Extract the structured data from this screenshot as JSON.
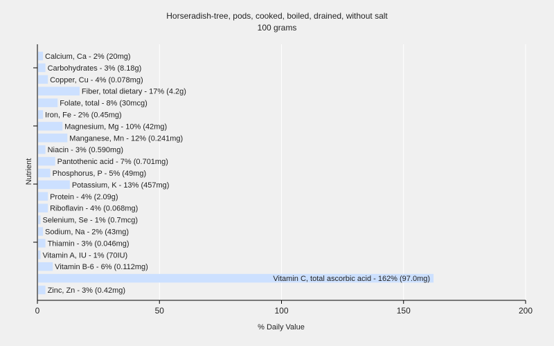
{
  "chart_data": {
    "type": "bar",
    "orientation": "horizontal",
    "title": "Horseradish-tree, pods, cooked, boiled, drained, without salt",
    "subtitle": "100 grams",
    "xlabel": "% Daily Value",
    "ylabel": "Nutrient",
    "xlim": [
      0,
      200
    ],
    "xticks": [
      0,
      50,
      100,
      150,
      200
    ],
    "grid": "vertical",
    "colors": {
      "bar": "#cce0ff",
      "grid": "#ffffff",
      "background": "#f0f0f0",
      "axis": "#000000"
    },
    "categories": [
      "Calcium, Ca - 2% (20mg)",
      "Carbohydrates - 3% (8.18g)",
      "Copper, Cu - 4% (0.078mg)",
      "Fiber, total dietary - 17% (4.2g)",
      "Folate, total - 8% (30mcg)",
      "Iron, Fe - 2% (0.45mg)",
      "Magnesium, Mg - 10% (42mg)",
      "Manganese, Mn - 12% (0.241mg)",
      "Niacin - 3% (0.590mg)",
      "Pantothenic acid - 7% (0.701mg)",
      "Phosphorus, P - 5% (49mg)",
      "Potassium, K - 13% (457mg)",
      "Protein - 4% (2.09g)",
      "Riboflavin - 4% (0.068mg)",
      "Selenium, Se - 1% (0.7mcg)",
      "Sodium, Na - 2% (43mg)",
      "Thiamin - 3% (0.046mg)",
      "Vitamin A, IU - 1% (70IU)",
      "Vitamin B-6 - 6% (0.112mg)",
      "Vitamin C, total ascorbic acid - 162% (97.0mg)",
      "Zinc, Zn - 3% (0.42mg)"
    ],
    "values": [
      2,
      3,
      4,
      17,
      8,
      2,
      10,
      12,
      3,
      7,
      5,
      13,
      4,
      4,
      1,
      2,
      3,
      1,
      6,
      162,
      3
    ]
  }
}
